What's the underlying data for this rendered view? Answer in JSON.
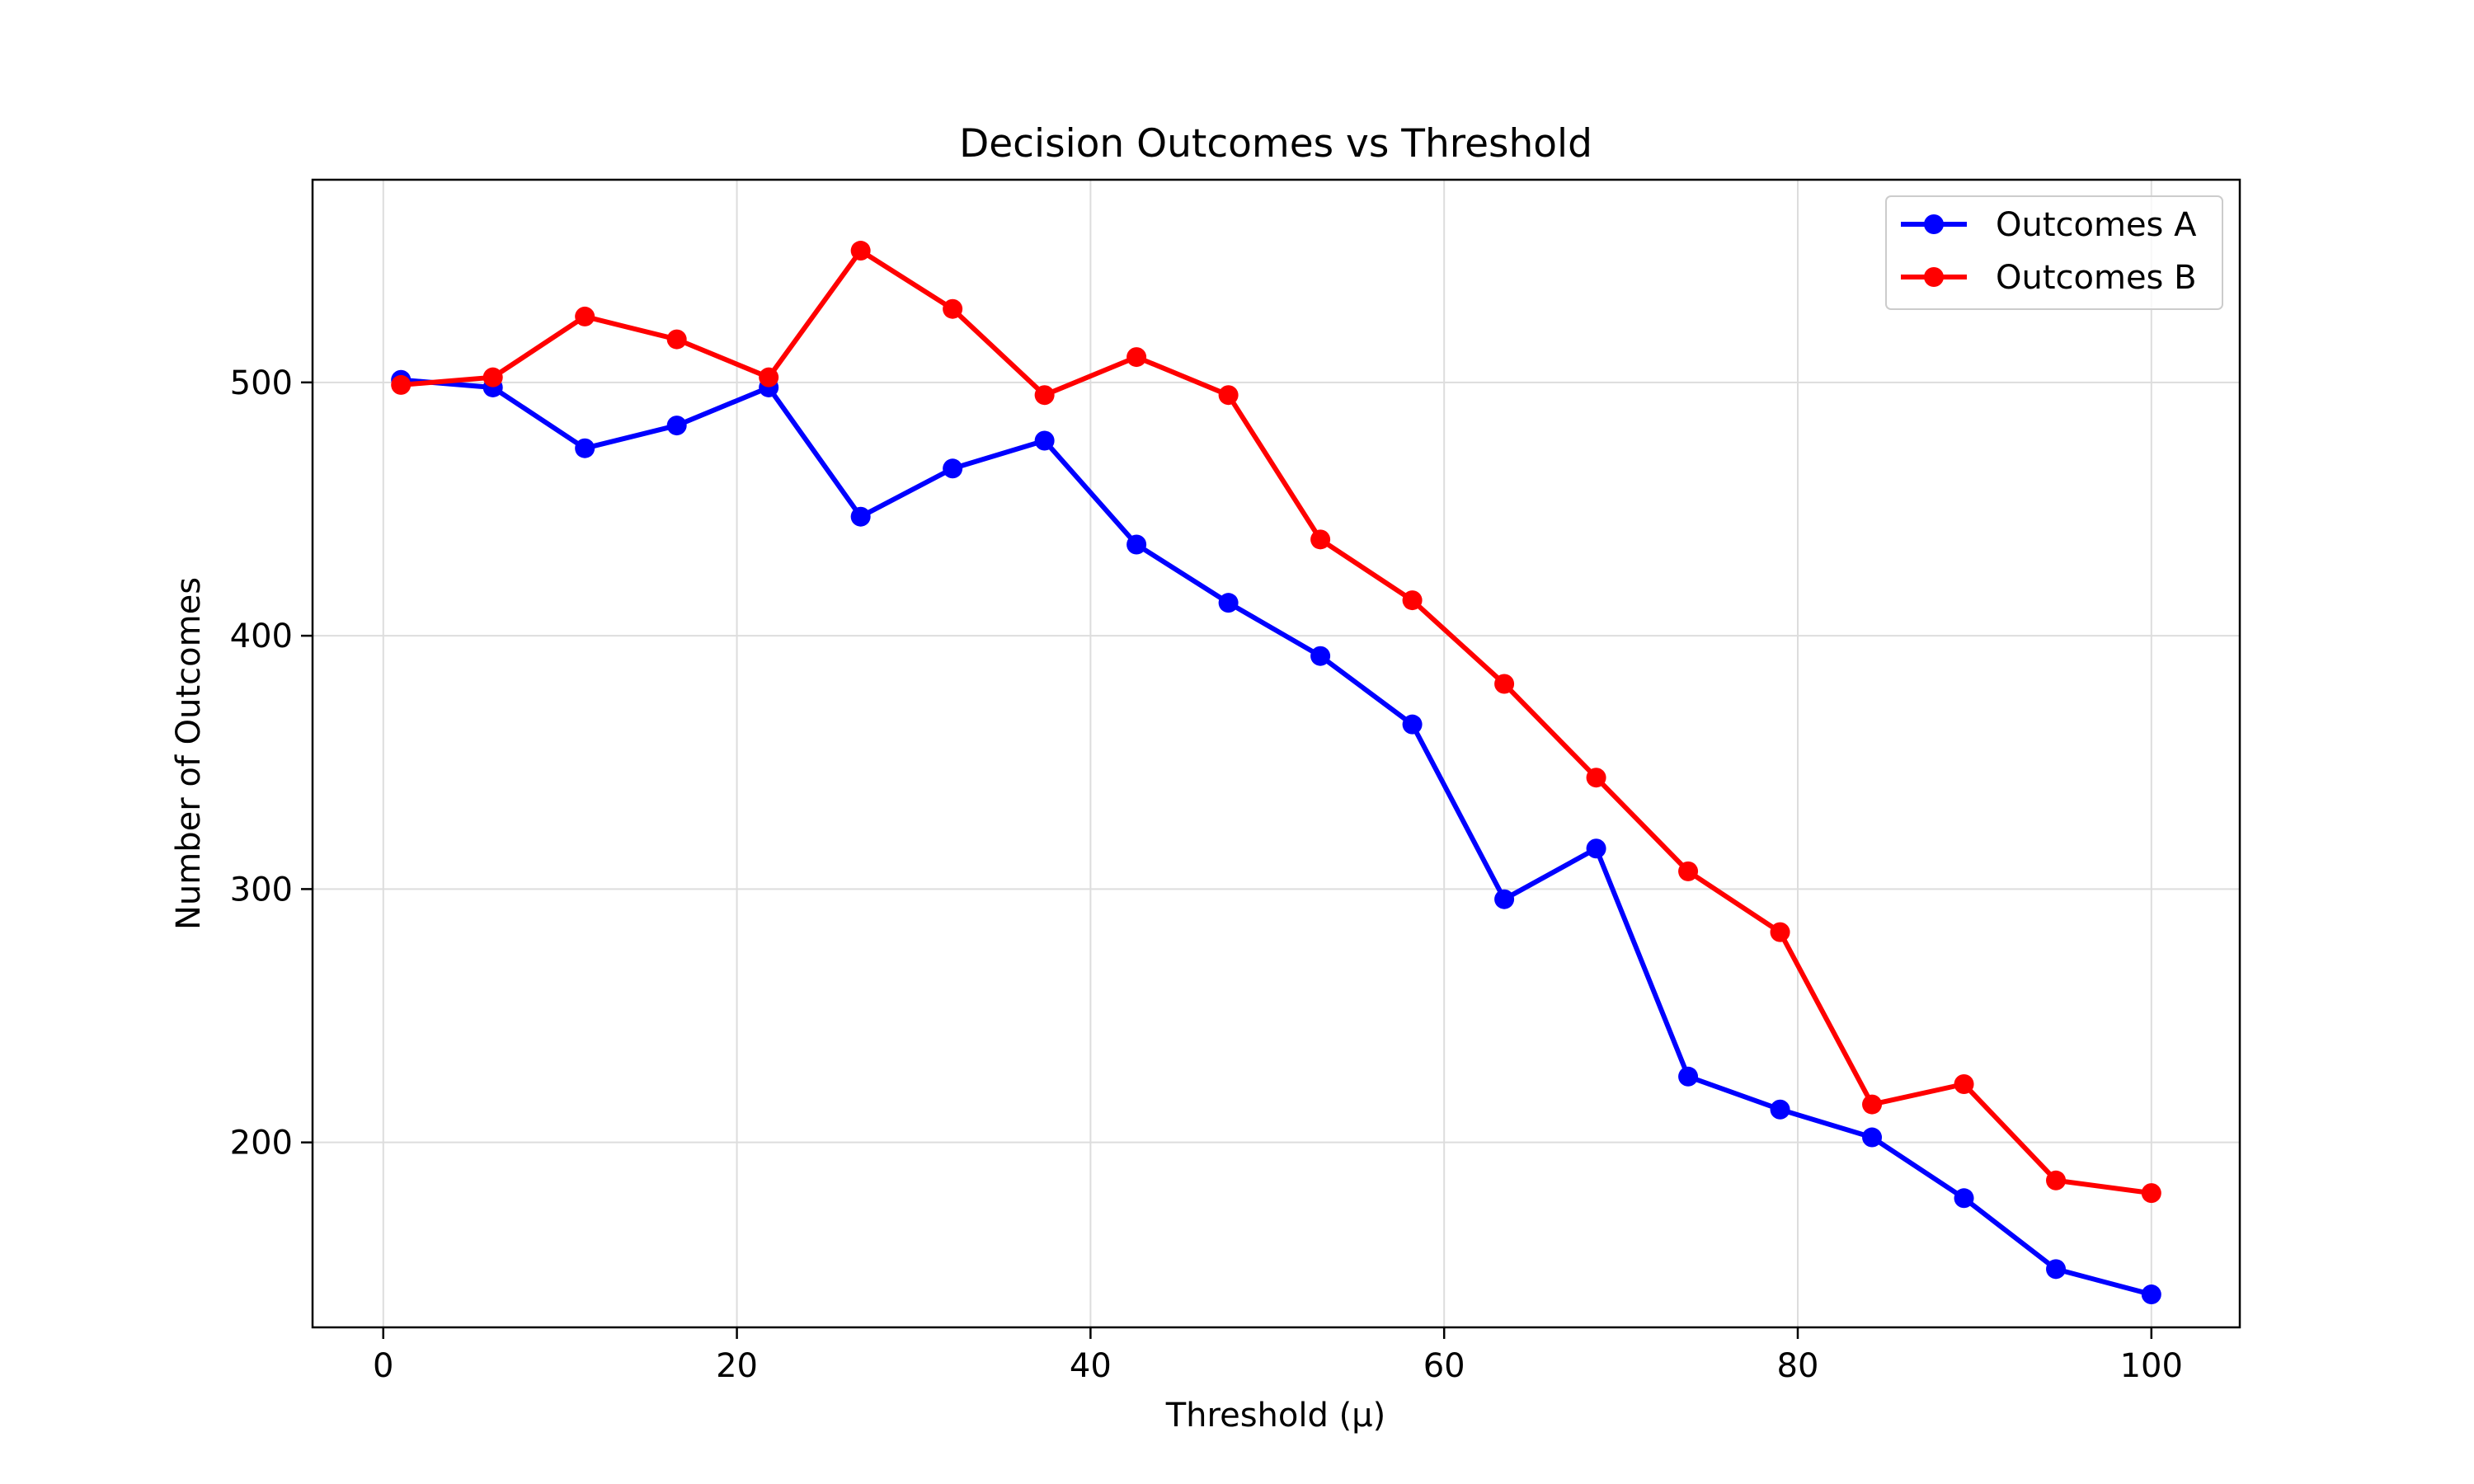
{
  "chart_data": {
    "type": "line",
    "title": "Decision Outcomes vs Threshold",
    "xlabel": "Threshold (μ)",
    "ylabel": "Number of Outcomes",
    "xlim": [
      -4,
      105
    ],
    "ylim": [
      127,
      580
    ],
    "xticks": [
      0,
      20,
      40,
      60,
      80,
      100
    ],
    "yticks": [
      200,
      300,
      400,
      500
    ],
    "grid": true,
    "legend_position": "top-right",
    "x": [
      1,
      6.2,
      11.4,
      16.6,
      21.8,
      27,
      32.2,
      37.4,
      42.6,
      47.8,
      53,
      58.2,
      63.4,
      68.6,
      73.8,
      79,
      84.2,
      89.4,
      94.6,
      100
    ],
    "series": [
      {
        "name": "Outcomes A",
        "color": "#0000ff",
        "values": [
          501,
          498,
          474,
          483,
          498,
          447,
          466,
          477,
          436,
          413,
          392,
          365,
          296,
          316,
          226,
          213,
          202,
          178,
          150,
          140
        ]
      },
      {
        "name": "Outcomes B",
        "color": "#ff0000",
        "values": [
          499,
          502,
          526,
          517,
          502,
          552,
          529,
          495,
          510,
          495,
          438,
          414,
          381,
          344,
          307,
          283,
          215,
          223,
          185,
          180
        ]
      }
    ]
  }
}
